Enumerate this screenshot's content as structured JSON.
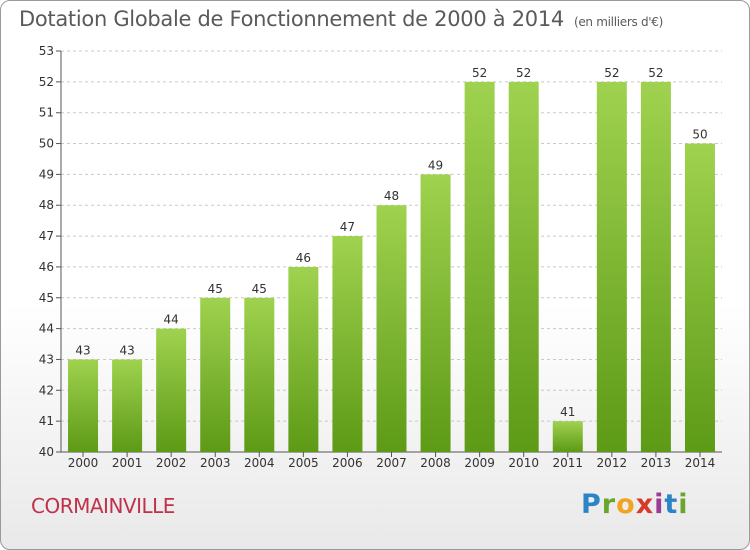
{
  "header": {
    "title": "Dotation Globale de Fonctionnement de 2000 à 2014",
    "subtitle": "(en milliers d'€)"
  },
  "footer": {
    "commune": "CORMAINVILLE",
    "logo": [
      "P",
      "r",
      "o",
      "x",
      "i",
      "t",
      "i"
    ]
  },
  "colors": {
    "bar_light": "#9fd24f",
    "bar_dark": "#5d9a16",
    "commune": "#c0314b",
    "grid": "#c8c8c8"
  },
  "chart_data": {
    "type": "bar",
    "title": "Dotation Globale de Fonctionnement de 2000 à 2014",
    "subtitle": "(en milliers d'€)",
    "xlabel": "",
    "ylabel": "",
    "categories": [
      "2000",
      "2001",
      "2002",
      "2003",
      "2004",
      "2005",
      "2006",
      "2007",
      "2008",
      "2009",
      "2010",
      "2011",
      "2012",
      "2013",
      "2014"
    ],
    "values": [
      43,
      43,
      44,
      45,
      45,
      46,
      47,
      48,
      49,
      52,
      52,
      41,
      52,
      52,
      50
    ],
    "ylim": [
      40,
      53
    ],
    "yticks": [
      40,
      41,
      42,
      43,
      44,
      45,
      46,
      47,
      48,
      49,
      50,
      51,
      52,
      53
    ],
    "grid": true,
    "data_labels": true
  }
}
